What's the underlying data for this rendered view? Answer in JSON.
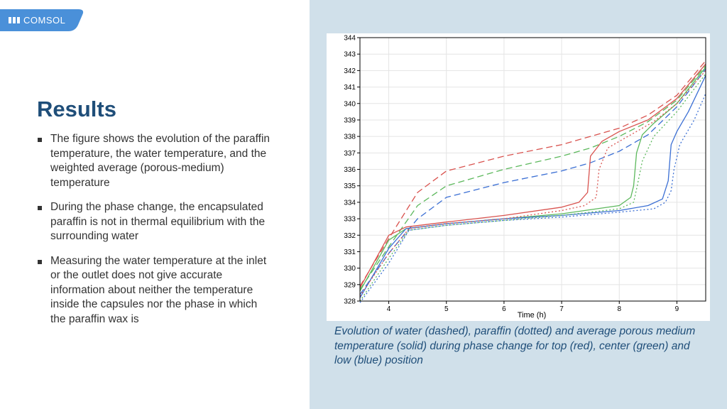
{
  "logo": {
    "text": "COMSOL",
    "color": "#4a90d9"
  },
  "slide": {
    "title": "Results",
    "bullets": [
      "The figure shows the evolution of the paraffin temperature, the water temperature, and the weighted average (porous-medium) temperature",
      "During the phase change, the encapsulated paraffin is not in thermal equilibrium with the surrounding water",
      "Measuring the water temperature at the inlet or the outlet does not give accurate information about neither the temperature inside the capsules nor the phase in which the paraffin wax is"
    ],
    "caption": "Evolution of water (dashed), paraffin (dotted) and average porous medium temperature (solid) during phase change for top (red), center (green) and low (blue) position"
  },
  "colors": {
    "title": "#1f4e79",
    "right_panel": "#d0e0ea",
    "red": "#d9534f",
    "green": "#5cb85c",
    "blue": "#3b6fd4"
  },
  "chart_data": {
    "type": "line",
    "title": "",
    "xlabel": "Time (h)",
    "ylabel": "",
    "xlim": [
      3.5,
      9.5
    ],
    "ylim": [
      328,
      344
    ],
    "xticks": [
      4,
      5,
      6,
      7,
      8,
      9
    ],
    "yticks": [
      328,
      329,
      330,
      331,
      332,
      333,
      334,
      335,
      336,
      337,
      338,
      339,
      340,
      341,
      342,
      343,
      344
    ],
    "grid": true,
    "legend": "none",
    "series": [
      {
        "color": "#d9534f",
        "dash": "dashed",
        "x": [
          3.5,
          4.0,
          4.5,
          5.0,
          6.0,
          7.0,
          7.5,
          8.0,
          8.5,
          9.0,
          9.5
        ],
        "y": [
          328.9,
          331.8,
          334.6,
          335.9,
          336.8,
          337.5,
          338.0,
          338.5,
          339.3,
          340.5,
          342.6
        ]
      },
      {
        "color": "#5cb85c",
        "dash": "dashed",
        "x": [
          3.5,
          4.0,
          4.5,
          5.0,
          6.0,
          7.0,
          7.5,
          8.0,
          8.5,
          9.0,
          9.5
        ],
        "y": [
          328.7,
          331.3,
          333.8,
          335.0,
          336.0,
          336.8,
          337.3,
          338.0,
          338.9,
          340.2,
          342.3
        ]
      },
      {
        "color": "#3b6fd4",
        "dash": "dashed",
        "x": [
          3.5,
          4.0,
          4.5,
          5.0,
          6.0,
          7.0,
          7.5,
          8.0,
          8.5,
          9.0,
          9.5
        ],
        "y": [
          328.4,
          330.9,
          333.0,
          334.3,
          335.2,
          335.9,
          336.4,
          337.1,
          338.1,
          339.8,
          342.1
        ]
      },
      {
        "color": "#d9534f",
        "dash": "solid",
        "x": [
          3.5,
          4.0,
          4.3,
          5.0,
          6.0,
          7.0,
          7.3,
          7.45,
          7.5,
          7.7,
          8.0,
          8.5,
          9.0,
          9.5
        ],
        "y": [
          328.8,
          332.0,
          332.5,
          332.8,
          333.2,
          333.7,
          334.0,
          334.6,
          336.8,
          337.7,
          338.3,
          339.0,
          340.3,
          342.4
        ]
      },
      {
        "color": "#5cb85c",
        "dash": "solid",
        "x": [
          3.5,
          4.0,
          4.3,
          5.0,
          6.0,
          7.0,
          8.0,
          8.2,
          8.25,
          8.3,
          8.4,
          8.6,
          9.0,
          9.5
        ],
        "y": [
          328.6,
          331.7,
          332.4,
          332.7,
          333.0,
          333.3,
          333.8,
          334.3,
          335.0,
          337.0,
          338.1,
          338.8,
          340.0,
          342.2
        ]
      },
      {
        "color": "#3b6fd4",
        "dash": "solid",
        "x": [
          3.5,
          4.0,
          4.3,
          5.0,
          6.0,
          7.0,
          8.0,
          8.5,
          8.75,
          8.85,
          8.9,
          9.0,
          9.2,
          9.5
        ],
        "y": [
          328.2,
          331.2,
          332.4,
          332.7,
          333.0,
          333.2,
          333.5,
          333.8,
          334.2,
          335.3,
          337.5,
          338.3,
          339.5,
          341.7
        ]
      },
      {
        "color": "#d9534f",
        "dash": "dotted",
        "x": [
          3.5,
          4.0,
          4.35,
          5.0,
          6.0,
          7.0,
          7.4,
          7.6,
          7.65,
          7.8,
          8.2,
          8.6,
          9.0,
          9.5
        ],
        "y": [
          328.3,
          330.9,
          332.4,
          332.7,
          333.0,
          333.5,
          333.8,
          334.3,
          336.0,
          337.3,
          338.1,
          338.9,
          340.0,
          342.0
        ]
      },
      {
        "color": "#5cb85c",
        "dash": "dotted",
        "x": [
          3.5,
          4.0,
          4.35,
          5.0,
          6.0,
          7.0,
          8.0,
          8.25,
          8.3,
          8.4,
          8.6,
          9.0,
          9.5
        ],
        "y": [
          328.0,
          330.6,
          332.3,
          332.6,
          332.9,
          333.2,
          333.6,
          334.0,
          334.8,
          336.5,
          338.0,
          339.5,
          341.8
        ]
      },
      {
        "color": "#3b6fd4",
        "dash": "dotted",
        "x": [
          3.5,
          4.0,
          4.35,
          5.0,
          6.0,
          7.0,
          8.0,
          8.6,
          8.8,
          8.9,
          8.95,
          9.05,
          9.3,
          9.5
        ],
        "y": [
          327.9,
          330.3,
          332.3,
          332.6,
          332.9,
          333.1,
          333.4,
          333.6,
          334.0,
          334.7,
          336.0,
          337.5,
          339.0,
          340.6
        ]
      }
    ]
  }
}
